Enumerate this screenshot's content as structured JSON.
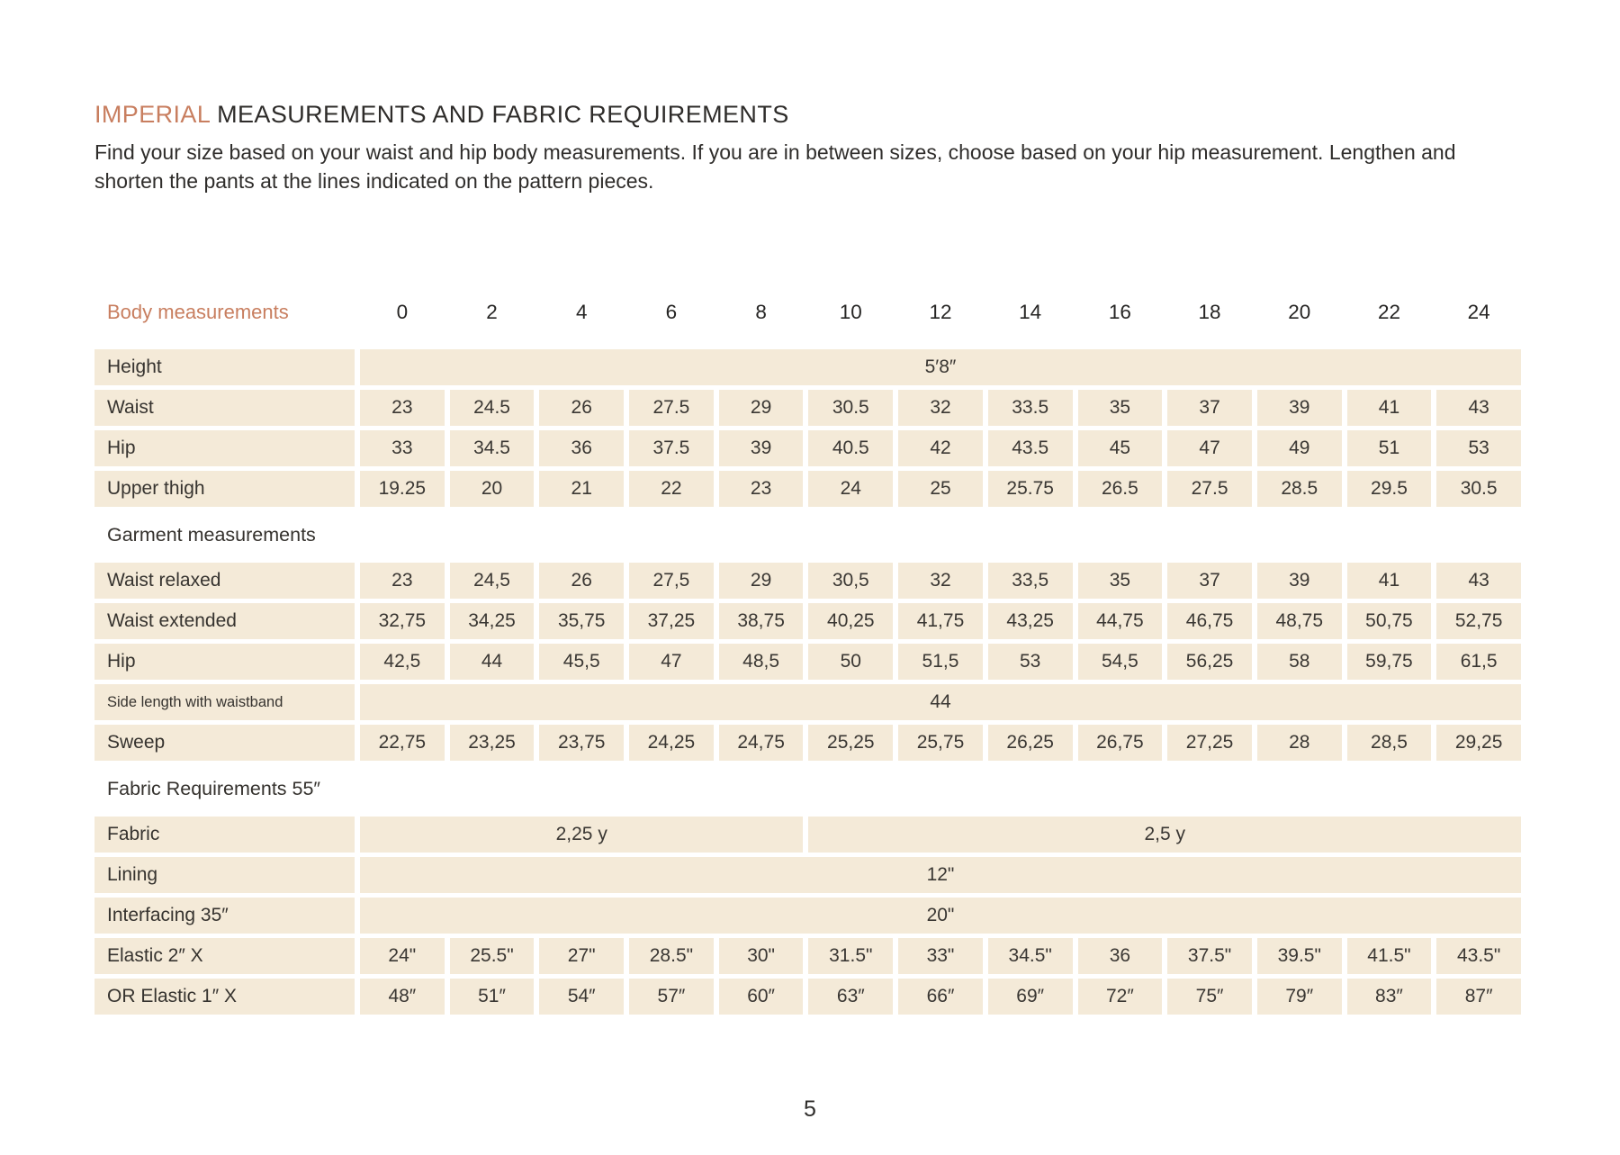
{
  "page": {
    "title_highlight": "IMPERIAL",
    "title_rest": " MEASUREMENTS AND FABRIC REQUIREMENTS",
    "subtitle": "Find your size based on your waist and hip body measurements. If you are in between sizes, choose based on your hip measurement. Lengthen and shorten the pants at the lines indicated on the pattern pieces.",
    "page_number": "5"
  },
  "colors": {
    "accent": "#c87e5f",
    "cell_background": "#f4ead8",
    "text": "#33302d"
  },
  "table": {
    "header": {
      "label": "Body measurements",
      "sizes": [
        "0",
        "2",
        "4",
        "6",
        "8",
        "10",
        "12",
        "14",
        "16",
        "18",
        "20",
        "22",
        "24"
      ]
    },
    "rows": [
      {
        "type": "span",
        "label": "Height",
        "value": "5′8″"
      },
      {
        "type": "cells",
        "label": "Waist",
        "values": [
          "23",
          "24.5",
          "26",
          "27.5",
          "29",
          "30.5",
          "32",
          "33.5",
          "35",
          "37",
          "39",
          "41",
          "43"
        ]
      },
      {
        "type": "cells",
        "label": "Hip",
        "values": [
          "33",
          "34.5",
          "36",
          "37.5",
          "39",
          "40.5",
          "42",
          "43.5",
          "45",
          "47",
          "49",
          "51",
          "53"
        ]
      },
      {
        "type": "cells",
        "label": "Upper thigh",
        "values": [
          "19.25",
          "20",
          "21",
          "22",
          "23",
          "24",
          "25",
          "25.75",
          "26.5",
          "27.5",
          "28.5",
          "29.5",
          "30.5"
        ]
      },
      {
        "type": "section",
        "label": "Garment measurements"
      },
      {
        "type": "cells",
        "label": "Waist relaxed",
        "values": [
          "23",
          "24,5",
          "26",
          "27,5",
          "29",
          "30,5",
          "32",
          "33,5",
          "35",
          "37",
          "39",
          "41",
          "43"
        ]
      },
      {
        "type": "cells",
        "label": "Waist extended",
        "values": [
          "32,75",
          "34,25",
          "35,75",
          "37,25",
          "38,75",
          "40,25",
          "41,75",
          "43,25",
          "44,75",
          "46,75",
          "48,75",
          "50,75",
          "52,75"
        ]
      },
      {
        "type": "cells",
        "label": "Hip",
        "values": [
          "42,5",
          "44",
          "45,5",
          "47",
          "48,5",
          "50",
          "51,5",
          "53",
          "54,5",
          "56,25",
          "58",
          "59,75",
          "61,5"
        ]
      },
      {
        "type": "span",
        "label": "Side length with waistband",
        "small_label": true,
        "value": "44"
      },
      {
        "type": "cells",
        "label": "Sweep",
        "values": [
          "22,75",
          "23,25",
          "23,75",
          "24,25",
          "24,75",
          "25,25",
          "25,75",
          "26,25",
          "26,75",
          "27,25",
          "28",
          "28,5",
          "29,25"
        ]
      },
      {
        "type": "section",
        "label": "Fabric Requirements 55″"
      },
      {
        "type": "split",
        "label": "Fabric",
        "segments": [
          {
            "value": "2,25 y",
            "span": 5
          },
          {
            "value": "2,5 y",
            "span": 8
          }
        ]
      },
      {
        "type": "span",
        "label": "Lining",
        "value": "12\""
      },
      {
        "type": "span",
        "label": "Interfacing 35″",
        "value": "20\""
      },
      {
        "type": "cells",
        "label": "Elastic 2″ X",
        "values": [
          "24\"",
          "25.5\"",
          "27\"",
          "28.5\"",
          "30\"",
          "31.5\"",
          "33\"",
          "34.5\"",
          "36",
          "37.5\"",
          "39.5\"",
          "41.5\"",
          "43.5\""
        ]
      },
      {
        "type": "cells",
        "label": "OR Elastic 1″  X",
        "values": [
          "48″",
          "51″",
          "54″",
          "57″",
          "60″",
          "63″",
          "66″",
          "69″",
          "72″",
          "75″",
          "79″",
          "83″",
          "87″"
        ]
      }
    ]
  }
}
